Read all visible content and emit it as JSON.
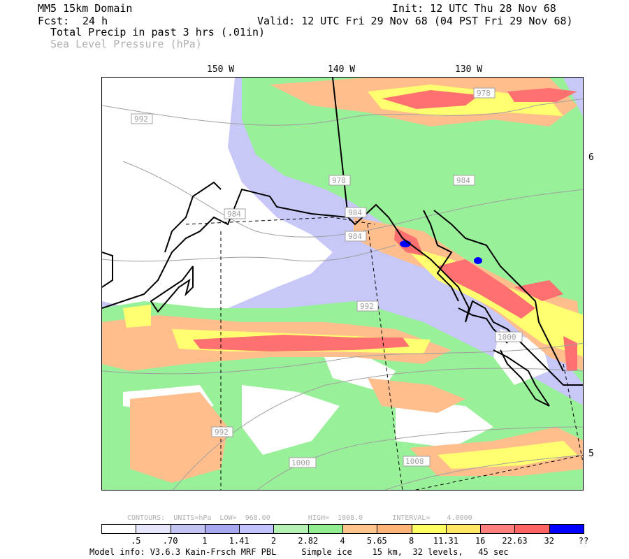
{
  "header": {
    "domain": "MM5 15km Domain",
    "init": "Init: 12 UTC Thu 28 Nov 68",
    "fcst_label": "Fcst:",
    "fcst_value": "24 h",
    "valid": "Valid: 12 UTC Fri 29 Nov 68 (04 PST Fri 29 Nov 68)",
    "field1": "Total Precip in past 3 hrs (.01in)",
    "field2": "Sea Level Pressure (hPa)"
  },
  "axes": {
    "lon_labels": [
      "150 W",
      "140 W",
      "130 W"
    ],
    "lat_labels": [
      "6",
      "5"
    ]
  },
  "isobar_labels": [
    "992",
    "978",
    "978",
    "984",
    "984",
    "984",
    "984",
    "992",
    "1000",
    "1000",
    "1008",
    "992"
  ],
  "contours_info": {
    "text": "CONTOURS:  UNITS=hPa  LOW=  968.00         HIGH=  1008.0       INTERVAL=    4.0000"
  },
  "legend": {
    "colors": [
      "#ffffff",
      "#e6e6fa",
      "#c4c4f4",
      "#a8a8f0",
      "#c2c2ff",
      "#b4f0b4",
      "#90ee90",
      "#ffc38c",
      "#ffb47a",
      "#ffff64",
      "#ffe664",
      "#ff7f7f",
      "#ff6464",
      "#0000ff"
    ],
    "labels": [
      ".5",
      ".70",
      "1",
      "1.41",
      "2",
      "2.82",
      "4",
      "5.65",
      "8",
      "11.31",
      "16",
      "22.63",
      "32",
      "??"
    ]
  },
  "footer": {
    "model_info": "Model info: V3.6.3 Kain-Frsch MRF PBL     Simple ice    15 km,  32 levels,   45 sec"
  },
  "colors": {
    "green": "#98f098",
    "lavender": "#c8c8f8",
    "orange": "#ffbe8c",
    "yellow": "#ffff70",
    "red": "#ff7070",
    "blue": "#0000ff",
    "isobar": "#a0a0a0"
  }
}
